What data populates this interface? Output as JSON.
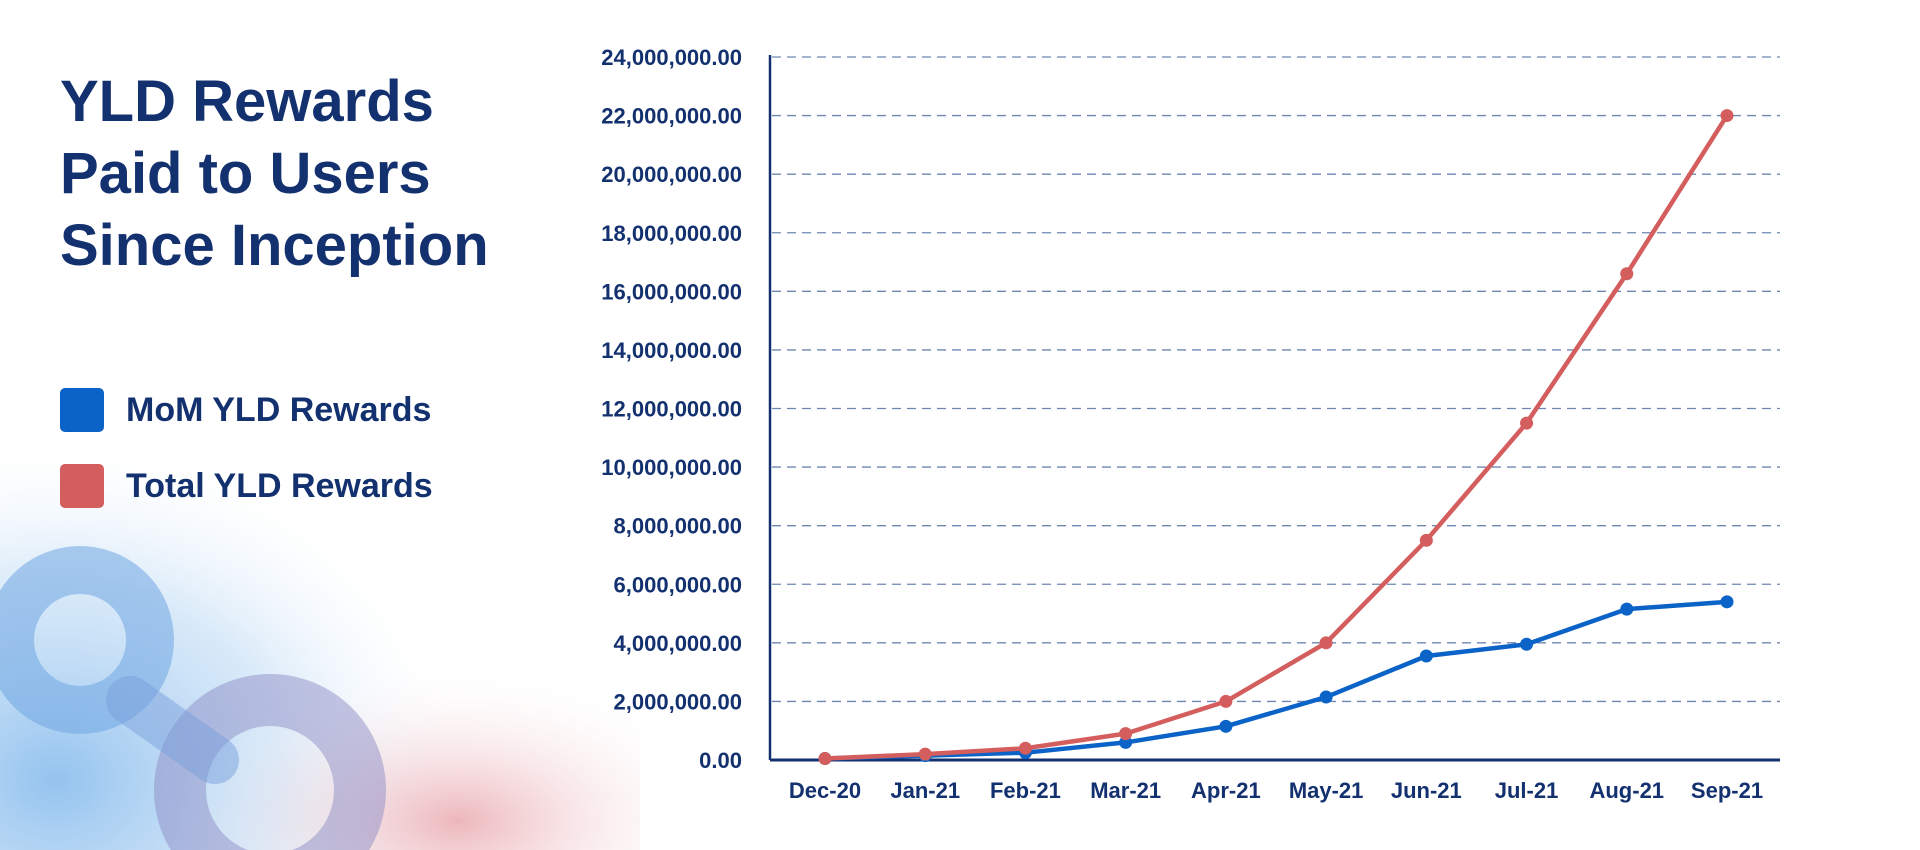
{
  "title": "YLD Rewards Paid to Users Since Inception",
  "colors": {
    "navy": "#13306f",
    "mom_series": "#0b63c8",
    "total_series": "#d45d5d",
    "grid": "#6f86b0"
  },
  "legend": {
    "items": [
      {
        "label": "MoM YLD Rewards",
        "color": "#0b63c8"
      },
      {
        "label": "Total YLD Rewards",
        "color": "#d45d5d"
      }
    ]
  },
  "chart_data": {
    "type": "line",
    "title": "YLD Rewards Paid to Users Since Inception",
    "xlabel": "",
    "ylabel": "",
    "categories": [
      "Dec-20",
      "Jan-21",
      "Feb-21",
      "Mar-21",
      "Apr-21",
      "May-21",
      "Jun-21",
      "Jul-21",
      "Aug-21",
      "Sep-21"
    ],
    "ylim": [
      0,
      24000000
    ],
    "yticks": [
      0,
      2000000,
      4000000,
      6000000,
      8000000,
      10000000,
      12000000,
      14000000,
      16000000,
      18000000,
      20000000,
      22000000,
      24000000
    ],
    "ytick_labels": [
      "0.00",
      "2,000,000.00",
      "4,000,000.00",
      "6,000,000.00",
      "8,000,000.00",
      "10,000,000.00",
      "12,000,000.00",
      "14,000,000.00",
      "16,000,000.00",
      "18,000,000.00",
      "20,000,000.00",
      "22,000,000.00",
      "24,000,000.00"
    ],
    "grid": true,
    "grid_style": "dashed-horizontal",
    "legend_position": "left",
    "series": [
      {
        "name": "MoM YLD Rewards",
        "color": "#0b63c8",
        "values": [
          50000,
          150000,
          250000,
          600000,
          1150000,
          2150000,
          3550000,
          3950000,
          5150000,
          5400000
        ]
      },
      {
        "name": "Total YLD Rewards",
        "color": "#d45d5d",
        "values": [
          50000,
          200000,
          400000,
          900000,
          2000000,
          4000000,
          7500000,
          11500000,
          16600000,
          22000000
        ]
      }
    ]
  }
}
